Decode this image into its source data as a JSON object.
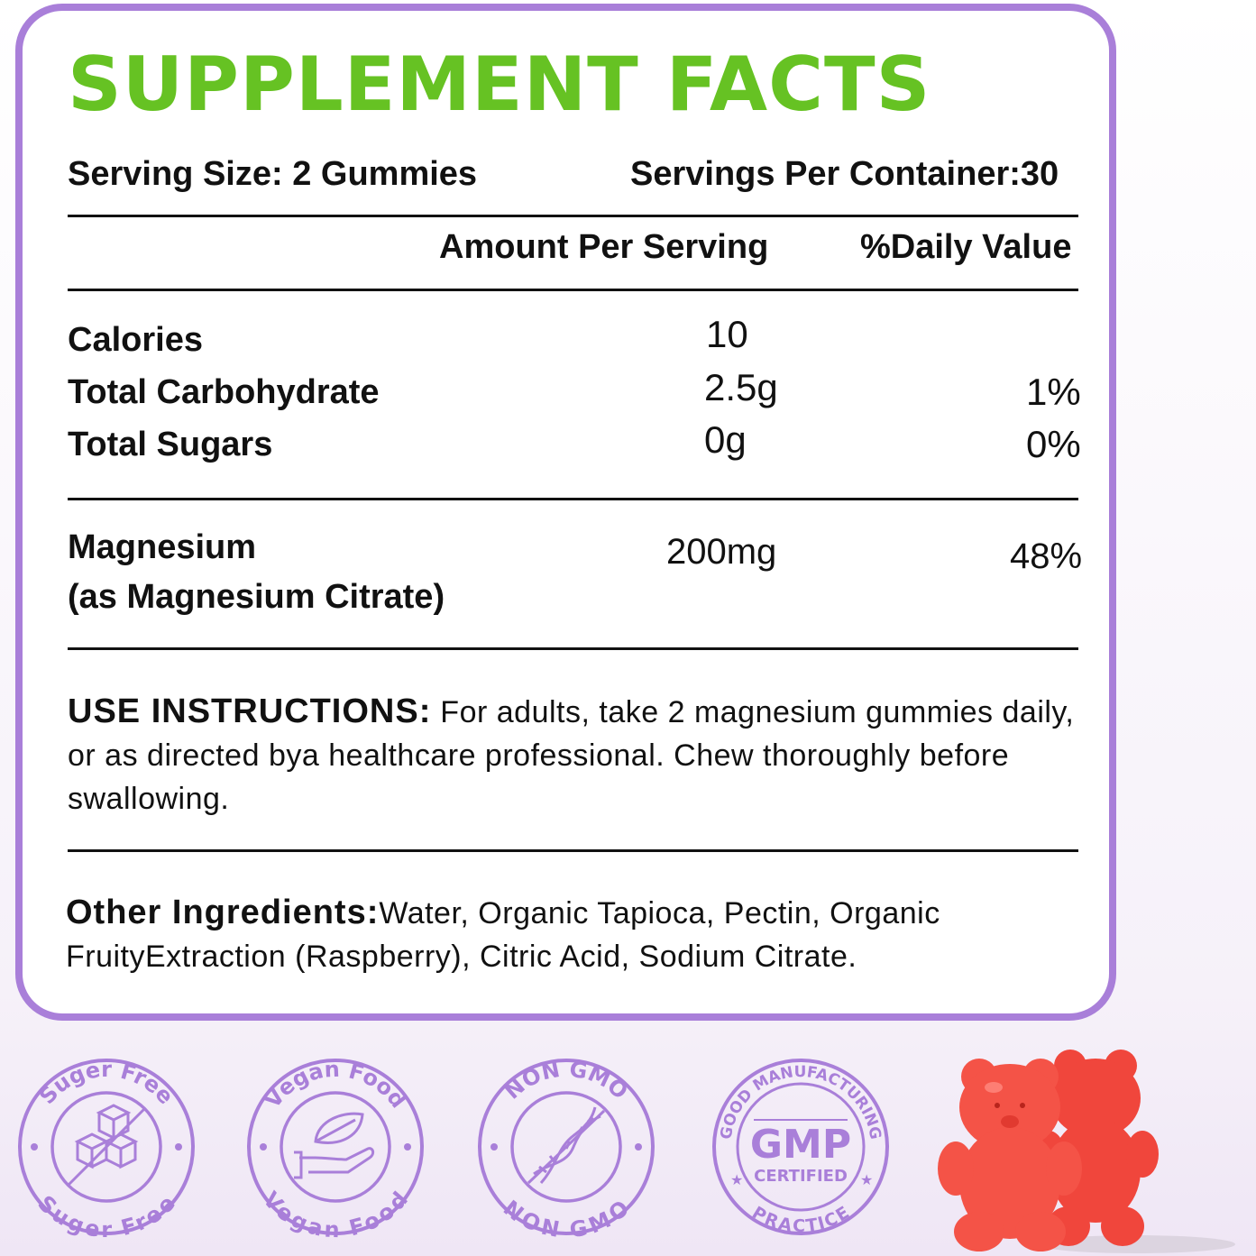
{
  "header": {
    "title": "SUPPLEMENT FACTS"
  },
  "serving": {
    "size": "Serving Size: 2 Gummies",
    "per_container": "Servings Per Container:30"
  },
  "columns": {
    "amount": "Amount Per Serving",
    "daily_value": "%Daily Value"
  },
  "nutrients": [
    {
      "name": "Calories",
      "amount": "10",
      "dv": ""
    },
    {
      "name": "Total Carbohydrate",
      "amount": "2.5g",
      "dv": "1%"
    },
    {
      "name": "Total Sugars",
      "amount": "0g",
      "dv": "0%"
    }
  ],
  "magnesium": {
    "name": "Magnesium",
    "source": "(as Magnesium Citrate)",
    "amount": "200mg",
    "dv": "48%"
  },
  "instructions": {
    "label": "USE INSTRUCTIONS:",
    "text": " For adults, take 2 magnesium gummies daily, or as directed bya healthcare professional. Chew thoroughly before swallowing."
  },
  "ingredients": {
    "label": "Other Ingredients:",
    "text": "Water, Organic Tapioca, Pectin, Organic FruityExtraction (Raspberry), Citric Acid, Sodium Citrate."
  },
  "badges": [
    {
      "top": "Suger Free",
      "bottom": "Suger Free",
      "icon": "sugar-cubes-crossed-icon"
    },
    {
      "top": "Vegan Food",
      "bottom": "Vegan Food",
      "icon": "leaf-hand-icon"
    },
    {
      "top": "NON GMO",
      "bottom": "NON GMO",
      "icon": "dna-icon"
    },
    {
      "top": "GOOD MANUFACTURING",
      "center": "GMP",
      "sub": "CERTIFIED",
      "bottom": "PRACTICE",
      "icon": "gmp-seal-icon"
    }
  ],
  "colors": {
    "accent_purple": "#a97fd9",
    "title_green": "#66c223",
    "bear_red": "#f0463c"
  }
}
